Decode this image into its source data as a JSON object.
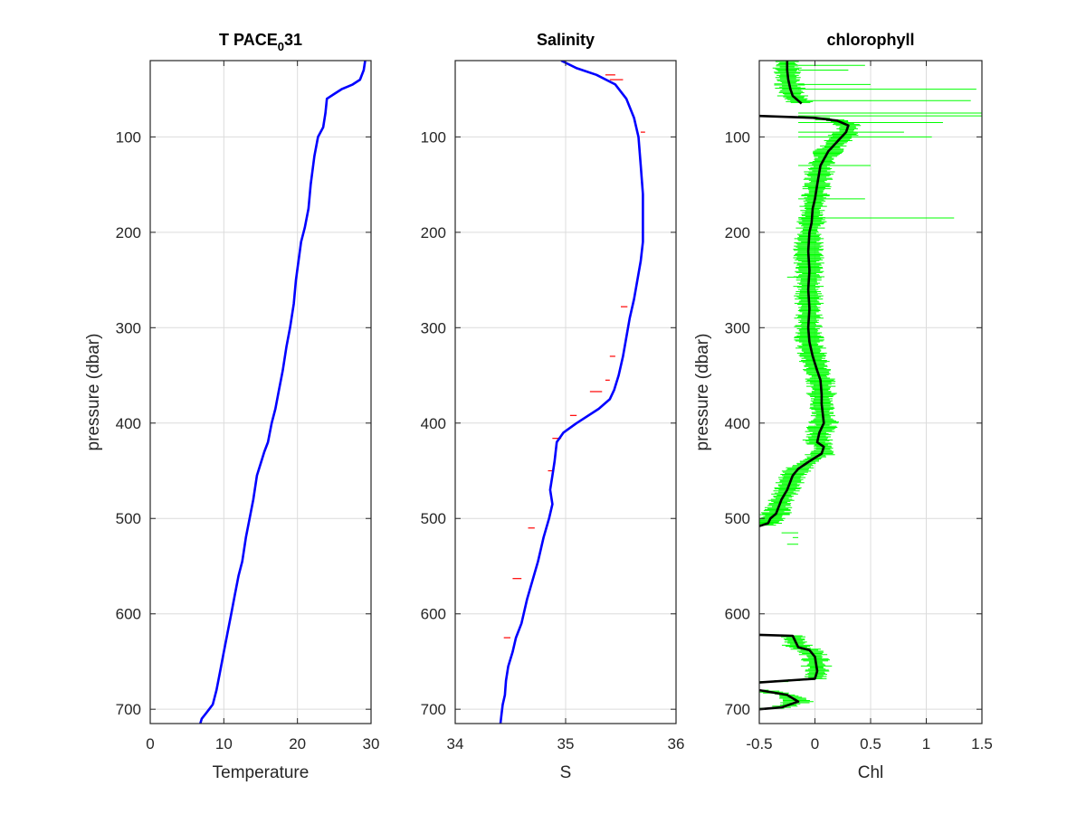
{
  "chart_data": [
    {
      "type": "line",
      "title": "T PACE",
      "title_subscript": "0",
      "title_suffix": "31",
      "xlabel": "Temperature",
      "ylabel": "pressure (dbar)",
      "xlim": [
        0,
        30
      ],
      "ylim": [
        715,
        20
      ],
      "y_reversed": true,
      "grid": true,
      "xticks": [
        "0",
        "10",
        "20",
        "30"
      ],
      "yticks": [
        "100",
        "200",
        "300",
        "400",
        "500",
        "600",
        "700"
      ],
      "colors": {
        "profile": "#0000ff"
      },
      "series": [
        {
          "x": [
            29.2,
            29.0,
            28.5,
            27.5,
            26.0,
            25.0,
            24.0,
            23.8,
            23.5,
            22.8,
            22.3,
            21.8,
            21.5,
            21.0,
            20.5,
            19.8,
            19.5,
            19.0,
            18.5,
            18.0,
            17.5,
            17.0,
            16.5,
            16.0,
            15.5,
            14.5,
            14.0,
            13.5,
            13.0,
            12.5,
            12.0,
            11.5,
            11.0,
            10.5,
            10.0,
            9.5,
            9.0,
            8.5,
            8.0,
            7.5,
            7.0,
            6.8
          ],
          "y": [
            20,
            30,
            40,
            45,
            50,
            55,
            60,
            75,
            90,
            100,
            120,
            150,
            175,
            195,
            210,
            250,
            275,
            300,
            320,
            345,
            365,
            385,
            400,
            420,
            430,
            455,
            480,
            500,
            520,
            545,
            560,
            580,
            600,
            620,
            640,
            660,
            680,
            695,
            700,
            705,
            710,
            715
          ]
        }
      ]
    },
    {
      "type": "line",
      "title": "Salinity",
      "xlabel": "S",
      "ylabel": "",
      "xlim": [
        34,
        36
      ],
      "ylim": [
        715,
        20
      ],
      "y_reversed": true,
      "grid": true,
      "xticks": [
        "34",
        "35",
        "36"
      ],
      "yticks": [
        "100",
        "200",
        "300",
        "400",
        "500",
        "600",
        "700"
      ],
      "colors": {
        "profile": "#0000ff",
        "spikes": "#ff0000"
      },
      "series": [
        {
          "x": [
            34.96,
            35.1,
            35.28,
            35.45,
            35.55,
            35.62,
            35.66,
            35.68,
            35.7,
            35.7,
            35.7,
            35.68,
            35.65,
            35.62,
            35.58,
            35.55,
            35.52,
            35.48,
            35.44,
            35.4,
            35.3,
            35.1,
            34.98,
            34.92,
            34.9,
            34.88,
            34.86,
            34.88,
            34.85,
            34.8,
            34.75,
            34.7,
            34.65,
            34.6,
            34.55,
            34.52,
            34.48,
            34.46,
            34.45,
            34.43,
            34.42,
            34.41
          ],
          "y": [
            20,
            28,
            35,
            45,
            60,
            80,
            100,
            130,
            160,
            190,
            210,
            230,
            250,
            270,
            290,
            310,
            330,
            350,
            365,
            375,
            385,
            400,
            410,
            420,
            440,
            455,
            470,
            485,
            500,
            520,
            545,
            565,
            585,
            610,
            625,
            640,
            655,
            670,
            685,
            695,
            705,
            715
          ]
        }
      ],
      "spikes": [
        {
          "y": 35,
          "x0": 35.36,
          "x1": 35.45
        },
        {
          "y": 40,
          "x0": 35.4,
          "x1": 35.52
        },
        {
          "y": 95,
          "x0": 35.68,
          "x1": 35.72
        },
        {
          "y": 278,
          "x0": 35.5,
          "x1": 35.56
        },
        {
          "y": 330,
          "x0": 35.4,
          "x1": 35.45
        },
        {
          "y": 355,
          "x0": 35.36,
          "x1": 35.4
        },
        {
          "y": 367,
          "x0": 35.22,
          "x1": 35.33
        },
        {
          "y": 392,
          "x0": 35.04,
          "x1": 35.1
        },
        {
          "y": 416,
          "x0": 34.88,
          "x1": 34.96
        },
        {
          "y": 450,
          "x0": 34.84,
          "x1": 34.89
        },
        {
          "y": 510,
          "x0": 34.66,
          "x1": 34.72
        },
        {
          "y": 563,
          "x0": 34.52,
          "x1": 34.6
        },
        {
          "y": 625,
          "x0": 34.44,
          "x1": 34.5
        }
      ]
    },
    {
      "type": "line",
      "title": "chlorophyll",
      "xlabel": "Chl",
      "ylabel": "pressure (dbar)",
      "xlim": [
        -0.5,
        1.5
      ],
      "ylim": [
        715,
        20
      ],
      "y_reversed": true,
      "grid": true,
      "xticks": [
        "-0.5",
        "0",
        "0.5",
        "1",
        "1.5"
      ],
      "yticks": [
        "100",
        "200",
        "300",
        "400",
        "500",
        "600",
        "700"
      ],
      "colors": {
        "raw": "#00ff00",
        "smoothed": "#000000"
      },
      "series": [
        {
          "name": "",
          "segments": [
            {
              "x": [
                -0.25,
                -0.25,
                -0.24,
                -0.22,
                -0.2,
                -0.15,
                -0.12
              ],
              "y": [
                20,
                30,
                40,
                50,
                57,
                62,
                65
              ]
            },
            {
              "x": [
                -0.5,
                0.0,
                0.2,
                0.3,
                0.28,
                0.2,
                0.12,
                0.05,
                0.02,
                0.0,
                -0.02,
                -0.03,
                -0.05,
                -0.06,
                -0.05,
                -0.06,
                -0.05,
                -0.06,
                -0.05,
                -0.02,
                0.02,
                0.05,
                0.06,
                0.06,
                0.07,
                0.08,
                0.04,
                0.02,
                0.08,
                0.06,
                -0.05,
                -0.15,
                -0.2,
                -0.25,
                -0.3,
                -0.35,
                -0.4,
                -0.42,
                -0.5
              ],
              "y": [
                78,
                80,
                83,
                88,
                95,
                105,
                115,
                130,
                150,
                165,
                175,
                190,
                200,
                220,
                240,
                260,
                280,
                300,
                315,
                330,
                345,
                355,
                370,
                380,
                390,
                400,
                410,
                420,
                425,
                432,
                440,
                448,
                455,
                470,
                480,
                495,
                500,
                505,
                508
              ]
            },
            {
              "x": [
                -0.5,
                -0.2,
                -0.15,
                -0.05,
                0.0,
                0.02,
                0.0,
                -0.5
              ],
              "y": [
                622,
                623,
                635,
                638,
                645,
                660,
                668,
                672
              ]
            },
            {
              "x": [
                -0.5,
                -0.25,
                -0.15,
                -0.3,
                -0.5
              ],
              "y": [
                680,
                685,
                692,
                698,
                700
              ]
            }
          ]
        }
      ],
      "raw_spikes": [
        {
          "y": 25,
          "x": 0.45
        },
        {
          "y": 30,
          "x": 0.3
        },
        {
          "y": 45,
          "x": 0.5
        },
        {
          "y": 50,
          "x": 1.45
        },
        {
          "y": 62,
          "x": 1.4
        },
        {
          "y": 75,
          "x": 1.5
        },
        {
          "y": 78,
          "x": 1.55
        },
        {
          "y": 85,
          "x": 1.15
        },
        {
          "y": 95,
          "x": 0.8
        },
        {
          "y": 100,
          "x": 1.05
        },
        {
          "y": 130,
          "x": 0.5
        },
        {
          "y": 165,
          "x": 0.45
        },
        {
          "y": 185,
          "x": 1.25
        },
        {
          "y": 247,
          "x": -0.25
        },
        {
          "y": 515,
          "x": -0.3
        },
        {
          "y": 520,
          "x": -0.2
        },
        {
          "y": 527,
          "x": -0.25
        }
      ]
    }
  ]
}
